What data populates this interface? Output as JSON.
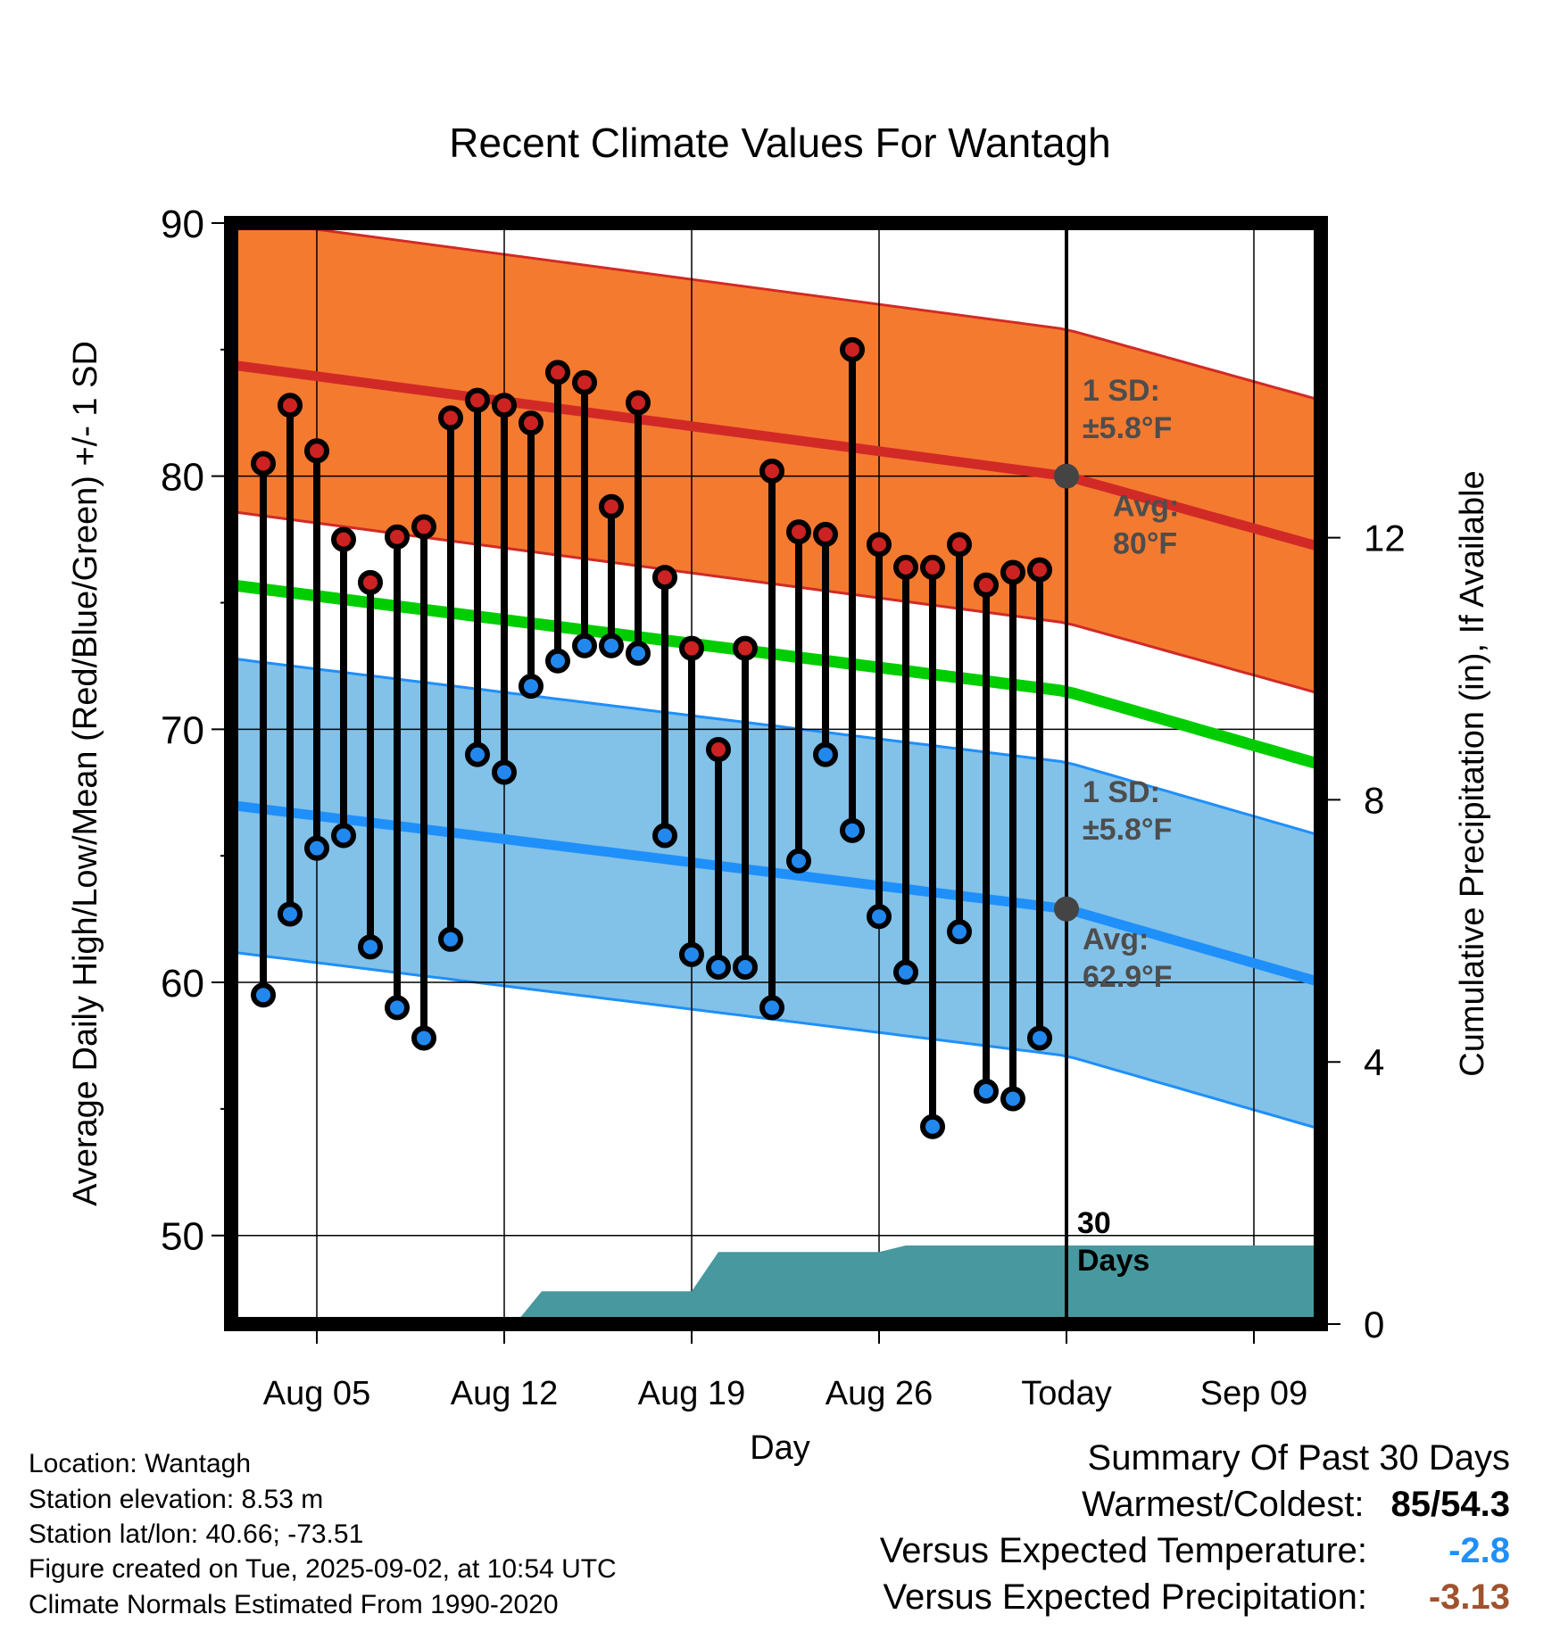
{
  "chart_data": {
    "type": "line",
    "title": "Recent Climate Values For Wantagh",
    "xlabel": "Day",
    "ylabel": "Average Daily High/Low/Mean (Red/Blue/Green) +/- 1 SD",
    "y2label": "Cumulative Precipitation (in), If Available",
    "ylim": [
      46.5,
      90
    ],
    "y2lim": [
      0,
      16.8
    ],
    "yticks": [
      "90",
      "80",
      "70",
      "60",
      "50"
    ],
    "y2ticks": [
      "12",
      "8",
      "4",
      "0"
    ],
    "xtick_labels": [
      "Aug 05",
      "Aug 12",
      "Aug 19",
      "Aug 26",
      "Today",
      "Sep 09"
    ],
    "xtick_days": [
      5,
      12,
      19,
      26,
      33,
      40
    ],
    "xlim": [
      1.8,
      42.5
    ],
    "today_day": 33,
    "daily": {
      "day": [
        3,
        4,
        5,
        6,
        7,
        8,
        9,
        10,
        11,
        12,
        13,
        14,
        15,
        16,
        17,
        18,
        19,
        20,
        21,
        22,
        23,
        24,
        25,
        26,
        27,
        28,
        29,
        30,
        31,
        32
      ],
      "high": [
        80.5,
        82.8,
        81.0,
        77.5,
        75.8,
        77.6,
        78.0,
        82.3,
        83.0,
        82.8,
        82.1,
        84.1,
        83.7,
        78.8,
        82.9,
        76.0,
        73.2,
        69.2,
        73.2,
        80.2,
        77.8,
        77.7,
        85.0,
        77.3,
        76.4,
        76.4,
        77.3,
        75.7,
        76.2,
        76.3
      ],
      "low": [
        59.5,
        62.7,
        65.3,
        65.8,
        61.4,
        59.0,
        57.8,
        61.7,
        69.0,
        68.3,
        71.7,
        72.7,
        73.3,
        73.3,
        73.0,
        65.8,
        61.1,
        60.6,
        60.6,
        59.0,
        64.8,
        69.0,
        66.0,
        62.6,
        60.4,
        54.3,
        62.0,
        55.7,
        55.4,
        57.8
      ]
    },
    "normals": {
      "day": [
        1.8,
        33,
        42.5
      ],
      "high_avg": [
        84.4,
        80.0,
        77.2
      ],
      "low_avg": [
        67.0,
        62.9,
        60.0
      ],
      "mean_avg": [
        75.7,
        71.5,
        68.6
      ],
      "sd": 5.8
    },
    "precip": {
      "day": [
        2,
        12.4,
        13.4,
        19,
        20,
        26,
        27,
        42.5
      ],
      "cum": [
        0,
        0,
        0.5,
        0.5,
        1.1,
        1.1,
        1.2,
        1.2
      ]
    },
    "annotations": {
      "high_sd": [
        "1 SD:",
        "±5.8°F"
      ],
      "high_avg": [
        "Avg:",
        "80°F"
      ],
      "low_sd": [
        "1 SD:",
        "±5.8°F"
      ],
      "low_avg": [
        "Avg:",
        "62.9°F"
      ],
      "period": [
        "30",
        "Days"
      ]
    },
    "colors": {
      "high_band": "#f47a30",
      "high_line": "#d12a26",
      "low_band": "#82c1e8",
      "low_line": "#1f8ffa",
      "mean_line": "#00cd00",
      "precip": "#47999f",
      "high_marker": "#cc2222",
      "low_marker": "#2288ee",
      "annotation": "#4d4d4d"
    }
  },
  "info": {
    "location": "Location: Wantagh",
    "elevation": "Station elevation: 8.53 m",
    "latlon": "Station lat/lon: 40.66; -73.51",
    "created": "Figure created on Tue, 2025-09-02, at 10:54 UTC",
    "normals": "Climate Normals Estimated From 1990-2020"
  },
  "summary": {
    "title": "Summary Of Past 30 Days",
    "warmest_label": "Warmest/Coldest:",
    "warmest_high": "85",
    "warmest_sep": "/",
    "warmest_low": "54.3",
    "temp_label": "Versus Expected Temperature:",
    "temp_value": "-2.8",
    "temp_color": "#1f8ffa",
    "precip_label": "Versus Expected Precipitation:",
    "precip_value": "-3.13",
    "precip_color": "#a0522d"
  }
}
